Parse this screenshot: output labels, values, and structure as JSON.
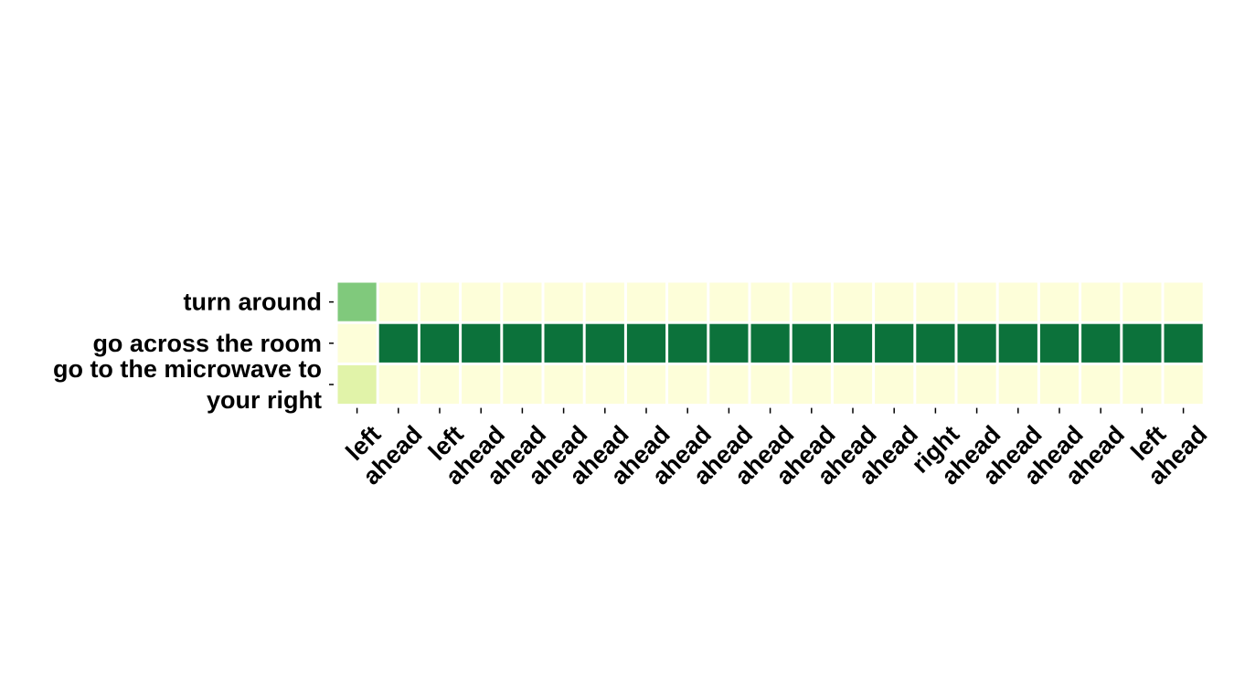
{
  "chart_data": {
    "type": "heatmap",
    "rows": [
      "turn around",
      "go across the room",
      "go to the microwave to your right"
    ],
    "columns": [
      "left",
      "ahead",
      "left",
      "ahead",
      "ahead",
      "ahead",
      "ahead",
      "ahead",
      "ahead",
      "ahead",
      "ahead",
      "ahead",
      "ahead",
      "ahead",
      "right",
      "ahead",
      "ahead",
      "ahead",
      "ahead",
      "left",
      "ahead"
    ],
    "values": [
      [
        0.55,
        0.04,
        0.04,
        0.04,
        0.04,
        0.04,
        0.04,
        0.04,
        0.04,
        0.04,
        0.04,
        0.04,
        0.04,
        0.04,
        0.04,
        0.04,
        0.04,
        0.04,
        0.04,
        0.04,
        0.04
      ],
      [
        0.04,
        0.95,
        0.95,
        0.95,
        0.95,
        0.95,
        0.95,
        0.95,
        0.95,
        0.95,
        0.95,
        0.95,
        0.95,
        0.95,
        0.95,
        0.95,
        0.95,
        0.95,
        0.95,
        0.95,
        0.95
      ],
      [
        0.25,
        0.04,
        0.04,
        0.04,
        0.04,
        0.04,
        0.04,
        0.04,
        0.04,
        0.04,
        0.04,
        0.04,
        0.04,
        0.04,
        0.04,
        0.04,
        0.04,
        0.04,
        0.04,
        0.04,
        0.04
      ]
    ],
    "colormap": [
      "#ffffe5",
      "#f7fcb9",
      "#d9f0a3",
      "#addd8e",
      "#78c679",
      "#41ab5d",
      "#238443",
      "#006837"
    ],
    "colorbar": false,
    "cell_border_color": "#ffffff"
  }
}
